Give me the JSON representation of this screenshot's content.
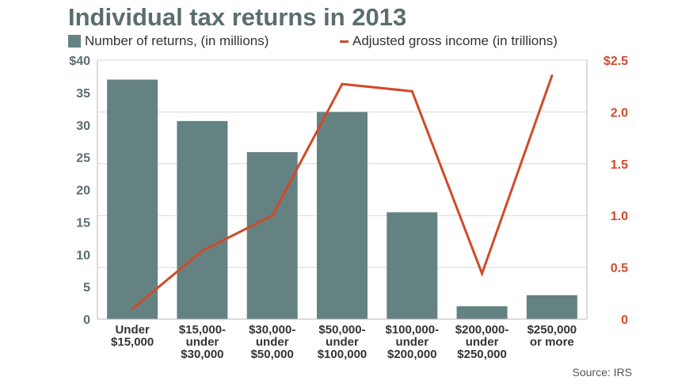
{
  "title": "Individual tax returns in 2013",
  "legend": {
    "bars": "Number of returns, (in millions)",
    "line": "Adjusted gross income (in trillions)"
  },
  "source": "Source: IRS",
  "colors": {
    "bar": "#648282",
    "line": "#d04a2a",
    "left_axis": "#5c6d6e",
    "right_axis": "#d04a2a",
    "grid": "#d9d9d9"
  },
  "chart_data": {
    "type": "bar",
    "title": "Individual tax returns in 2013",
    "categories": [
      [
        "Under",
        "$15,000"
      ],
      [
        "$15,000-",
        "under",
        "$30,000"
      ],
      [
        "$30,000-",
        "under",
        "$50,000"
      ],
      [
        "$50,000-",
        "under",
        "$100,000"
      ],
      [
        "$100,000-",
        "under",
        "$200,000"
      ],
      [
        "$200,000-",
        "under",
        "$250,000"
      ],
      [
        "$250,000",
        "or more"
      ]
    ],
    "series": [
      {
        "name": "Number of returns, (in millions)",
        "type": "bar",
        "axis": "left",
        "values": [
          37,
          30.6,
          25.8,
          32,
          16.5,
          2,
          3.7
        ]
      },
      {
        "name": "Adjusted gross income (in trillions)",
        "type": "line",
        "axis": "right",
        "values": [
          0.1,
          0.66,
          1.0,
          2.27,
          2.2,
          0.44,
          2.35
        ]
      }
    ],
    "y_left": {
      "ylim": [
        0,
        40
      ],
      "ticks": [
        "0",
        "5",
        "10",
        "15",
        "20",
        "25",
        "30",
        "35",
        "$40"
      ]
    },
    "y_right": {
      "ylim": [
        0,
        2.5
      ],
      "ticks": [
        "0",
        "0.5",
        "1.0",
        "1.5",
        "2.0",
        "$2.5"
      ]
    },
    "grid": true,
    "legend_position": "top-left"
  }
}
